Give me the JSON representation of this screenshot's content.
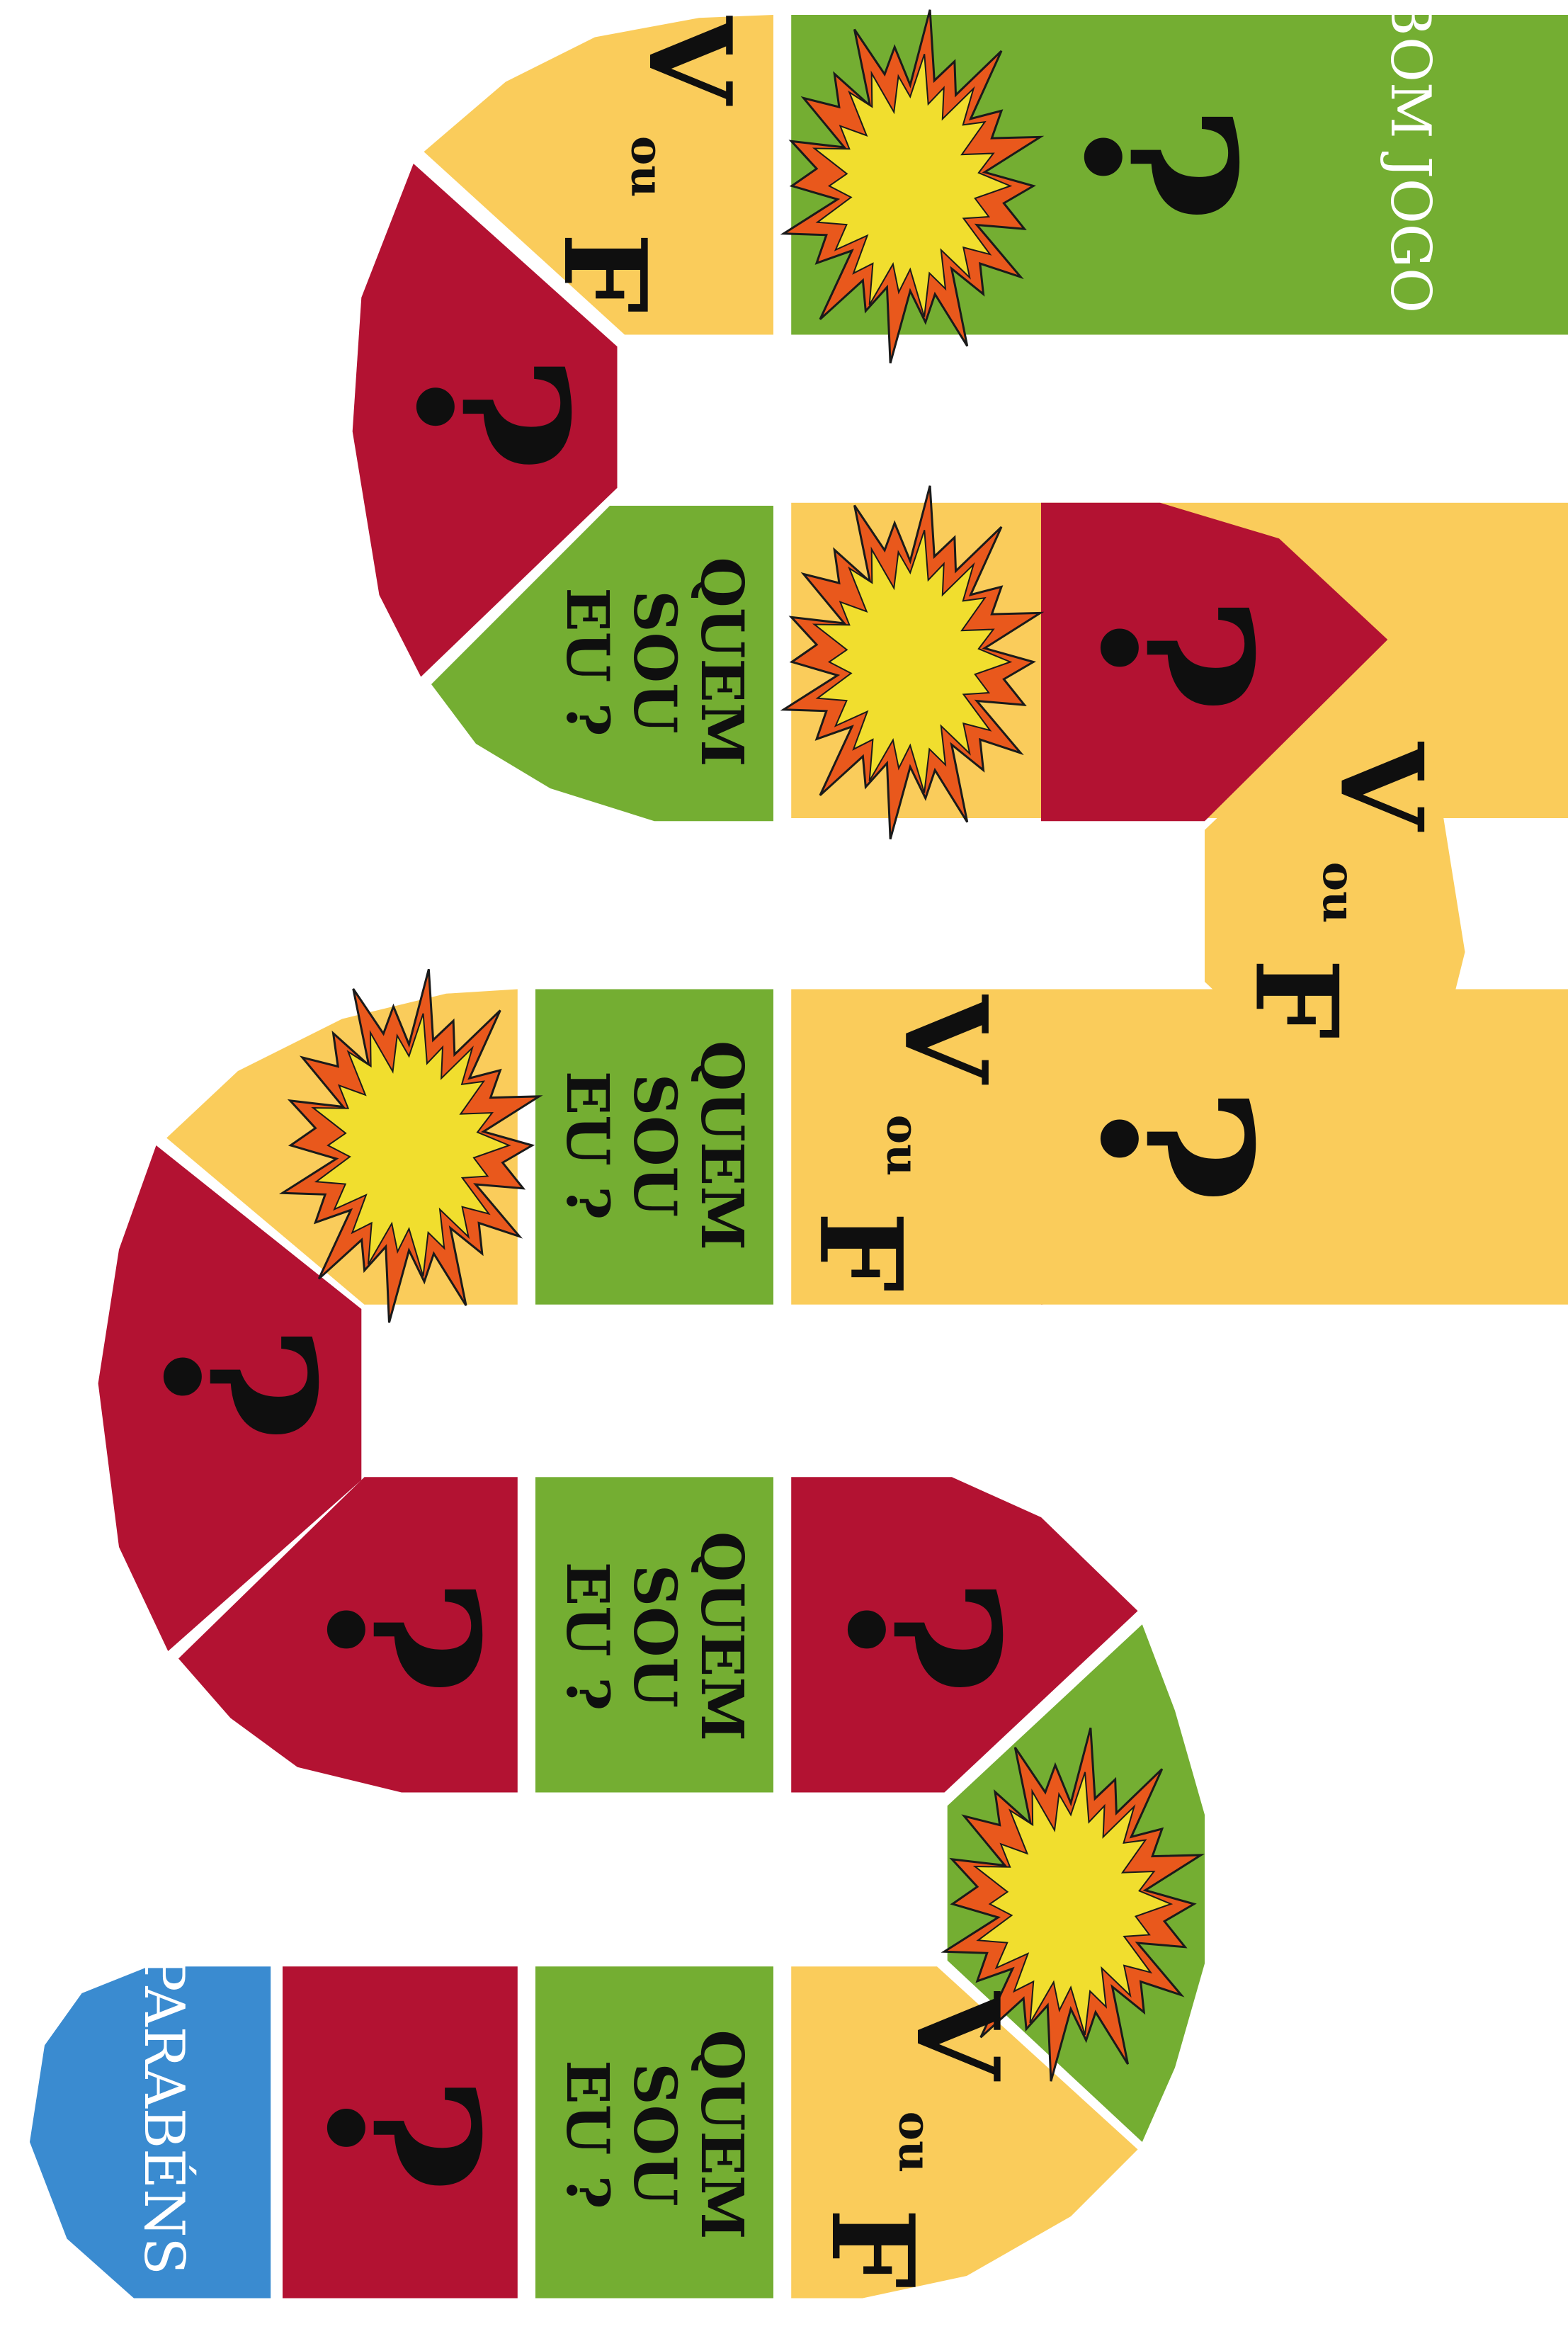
{
  "board": {
    "start_label": "BOM JOGO !",
    "end_label": "PARABÉNS !",
    "question_symbol": "?",
    "true_false": {
      "v": "V",
      "ou": "ou",
      "f": "F"
    },
    "who_am_i": [
      "QUEM",
      "SOU",
      "EU ?"
    ],
    "colors": {
      "red": "#B31232",
      "yellow": "#FACC5B",
      "green": "#74AE32",
      "blue": "#3A8BD0",
      "burst_outer": "#E9581C",
      "burst_inner": "#F1DE2E",
      "text": "#0F0F0F",
      "white_text": "#FFFFFF"
    },
    "icons": {
      "question": "question-mark-icon",
      "burst": "explosion-burst-icon"
    },
    "sequence": [
      {
        "kind": "start",
        "color": "blue"
      },
      {
        "kind": "question",
        "color": "red"
      },
      {
        "kind": "burst",
        "color": "green"
      },
      {
        "kind": "true_false",
        "color": "yellow"
      },
      {
        "kind": "question",
        "color": "red"
      },
      {
        "kind": "who_am_i",
        "color": "green"
      },
      {
        "kind": "burst",
        "color": "yellow"
      },
      {
        "kind": "question",
        "color": "red"
      },
      {
        "kind": "true_false",
        "color": "yellow"
      },
      {
        "kind": "question",
        "color": "red"
      },
      {
        "kind": "true_false",
        "color": "yellow"
      },
      {
        "kind": "who_am_i",
        "color": "green"
      },
      {
        "kind": "burst",
        "color": "yellow"
      },
      {
        "kind": "question",
        "color": "red"
      },
      {
        "kind": "question",
        "color": "red"
      },
      {
        "kind": "who_am_i",
        "color": "green"
      },
      {
        "kind": "question",
        "color": "red"
      },
      {
        "kind": "burst",
        "color": "green"
      },
      {
        "kind": "true_false",
        "color": "yellow"
      },
      {
        "kind": "who_am_i",
        "color": "green"
      },
      {
        "kind": "question",
        "color": "red"
      },
      {
        "kind": "end",
        "color": "blue"
      }
    ]
  }
}
